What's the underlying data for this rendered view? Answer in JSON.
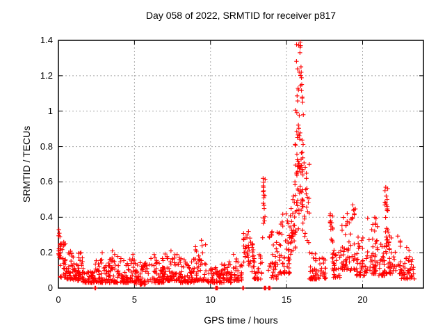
{
  "chart_data": {
    "type": "scatter",
    "title": "Day 058 of 2022, SRMTID for receiver p817",
    "xlabel": "GPS time / hours",
    "ylabel": "SRMTID / TECUs",
    "xlim": [
      0,
      24
    ],
    "ylim": [
      0,
      1.4
    ],
    "xticks": [
      0,
      5,
      10,
      15,
      20
    ],
    "yticks": [
      0,
      0.2,
      0.4,
      0.6,
      0.8,
      1,
      1.2,
      1.4
    ],
    "grid": true,
    "grid_style": "dashed",
    "legend": "none",
    "colors": {
      "marker": "#ff0000",
      "grid": "#a8a8a8",
      "border": "#000000",
      "background": "#ffffff",
      "text": "#000000"
    },
    "series": [
      {
        "name": "SRMTID",
        "marker": "plus",
        "color": "#ff0000",
        "peak_points": [
          [
            0.03,
            0.33
          ],
          [
            0.06,
            0.31
          ],
          [
            0.1,
            0.29
          ],
          [
            0.35,
            0.26
          ],
          [
            1.48,
            0.2
          ],
          [
            2.88,
            0.2
          ],
          [
            3.55,
            0.21
          ],
          [
            3.7,
            0.19
          ],
          [
            4.9,
            0.19
          ],
          [
            6.3,
            0.19
          ],
          [
            7.4,
            0.21
          ],
          [
            7.8,
            0.19
          ],
          [
            9.4,
            0.27
          ],
          [
            9.45,
            0.24
          ],
          [
            12.4,
            0.3
          ],
          [
            12.5,
            0.32
          ],
          [
            13.46,
            0.62
          ],
          [
            13.48,
            0.57
          ],
          [
            13.5,
            0.55
          ],
          [
            13.51,
            0.51
          ],
          [
            13.53,
            0.45
          ],
          [
            13.55,
            0.38
          ],
          [
            14.75,
            0.35
          ],
          [
            15.05,
            0.38
          ],
          [
            15.3,
            0.45
          ],
          [
            15.45,
            0.52
          ],
          [
            15.55,
            0.6
          ],
          [
            15.88,
            1.33
          ],
          [
            15.9,
            1.39
          ],
          [
            15.92,
            1.37
          ],
          [
            15.95,
            1.25
          ],
          [
            15.97,
            1.22
          ],
          [
            16.0,
            1.15
          ],
          [
            15.78,
            1.12
          ],
          [
            16.03,
            1.08
          ],
          [
            16.06,
            1.05
          ],
          [
            16.1,
            0.98
          ],
          [
            16.3,
            0.62
          ],
          [
            17.88,
            0.42
          ],
          [
            17.9,
            0.38
          ],
          [
            17.92,
            0.35
          ],
          [
            18.0,
            0.27
          ],
          [
            19.35,
            0.47
          ],
          [
            19.4,
            0.44
          ],
          [
            19.45,
            0.42
          ],
          [
            20.8,
            0.4
          ],
          [
            20.85,
            0.36
          ],
          [
            21.52,
            0.57
          ],
          [
            21.55,
            0.52
          ],
          [
            21.57,
            0.47
          ],
          [
            21.6,
            0.44
          ],
          [
            22.9,
            0.23
          ],
          [
            23.2,
            0.15
          ]
        ],
        "zero_points": [
          2.4,
          2.45,
          10.34,
          10.37,
          10.4,
          10.43,
          10.46,
          12.12,
          12.17,
          13.54,
          13.57,
          13.6,
          13.63,
          13.82,
          13.85,
          13.88,
          13.91
        ],
        "density_segments": [
          [
            0.0,
            0.15,
            0.08,
            0.33,
            16,
            "m"
          ],
          [
            0.1,
            0.5,
            0.06,
            0.28,
            30,
            "l"
          ],
          [
            0.5,
            1.0,
            0.05,
            0.22,
            34,
            "l"
          ],
          [
            1.0,
            1.35,
            0.04,
            0.14,
            24,
            "l"
          ],
          [
            1.3,
            1.6,
            0.05,
            0.2,
            20,
            "l"
          ],
          [
            1.6,
            2.4,
            0.03,
            0.12,
            48,
            "l"
          ],
          [
            2.4,
            3.0,
            0.03,
            0.16,
            38,
            "l"
          ],
          [
            3.0,
            4.0,
            0.03,
            0.18,
            62,
            "l"
          ],
          [
            4.0,
            5.0,
            0.03,
            0.17,
            62,
            "l"
          ],
          [
            5.0,
            6.0,
            0.02,
            0.15,
            62,
            "l"
          ],
          [
            6.0,
            7.0,
            0.03,
            0.18,
            62,
            "l"
          ],
          [
            7.0,
            8.0,
            0.04,
            0.2,
            62,
            "l"
          ],
          [
            8.0,
            9.0,
            0.03,
            0.17,
            62,
            "l"
          ],
          [
            9.0,
            9.7,
            0.04,
            0.26,
            42,
            "l"
          ],
          [
            9.7,
            10.6,
            0.03,
            0.12,
            40,
            "l"
          ],
          [
            10.6,
            11.5,
            0.03,
            0.15,
            52,
            "l"
          ],
          [
            11.5,
            12.1,
            0.04,
            0.2,
            32,
            "l"
          ],
          [
            12.15,
            12.85,
            0.08,
            0.32,
            40,
            "m"
          ],
          [
            12.85,
            13.4,
            0.05,
            0.2,
            28,
            "l"
          ],
          [
            13.4,
            13.6,
            0.25,
            0.62,
            12,
            "u"
          ],
          [
            13.8,
            14.5,
            0.05,
            0.32,
            38,
            "l"
          ],
          [
            14.5,
            15.3,
            0.08,
            0.42,
            52,
            "l"
          ],
          [
            15.3,
            15.6,
            0.15,
            0.55,
            28,
            "m"
          ],
          [
            15.55,
            16.1,
            0.3,
            1.05,
            60,
            "m"
          ],
          [
            15.65,
            16.05,
            1.05,
            1.4,
            14,
            "u"
          ],
          [
            16.05,
            16.5,
            0.2,
            0.8,
            26,
            "m"
          ],
          [
            16.5,
            17.6,
            0.05,
            0.2,
            56,
            "l"
          ],
          [
            17.8,
            18.05,
            0.24,
            0.42,
            10,
            "u"
          ],
          [
            18.0,
            18.55,
            0.06,
            0.22,
            30,
            "l"
          ],
          [
            18.55,
            19.55,
            0.1,
            0.45,
            62,
            "l"
          ],
          [
            19.55,
            20.3,
            0.07,
            0.3,
            42,
            "l"
          ],
          [
            20.3,
            21.05,
            0.08,
            0.4,
            46,
            "l"
          ],
          [
            21.05,
            21.45,
            0.07,
            0.25,
            26,
            "l"
          ],
          [
            21.45,
            21.7,
            0.3,
            0.57,
            14,
            "u"
          ],
          [
            21.45,
            22.55,
            0.08,
            0.3,
            56,
            "l"
          ],
          [
            22.55,
            23.05,
            0.05,
            0.22,
            30,
            "l"
          ],
          [
            23.05,
            23.4,
            0.05,
            0.18,
            16,
            "l"
          ]
        ]
      }
    ]
  }
}
